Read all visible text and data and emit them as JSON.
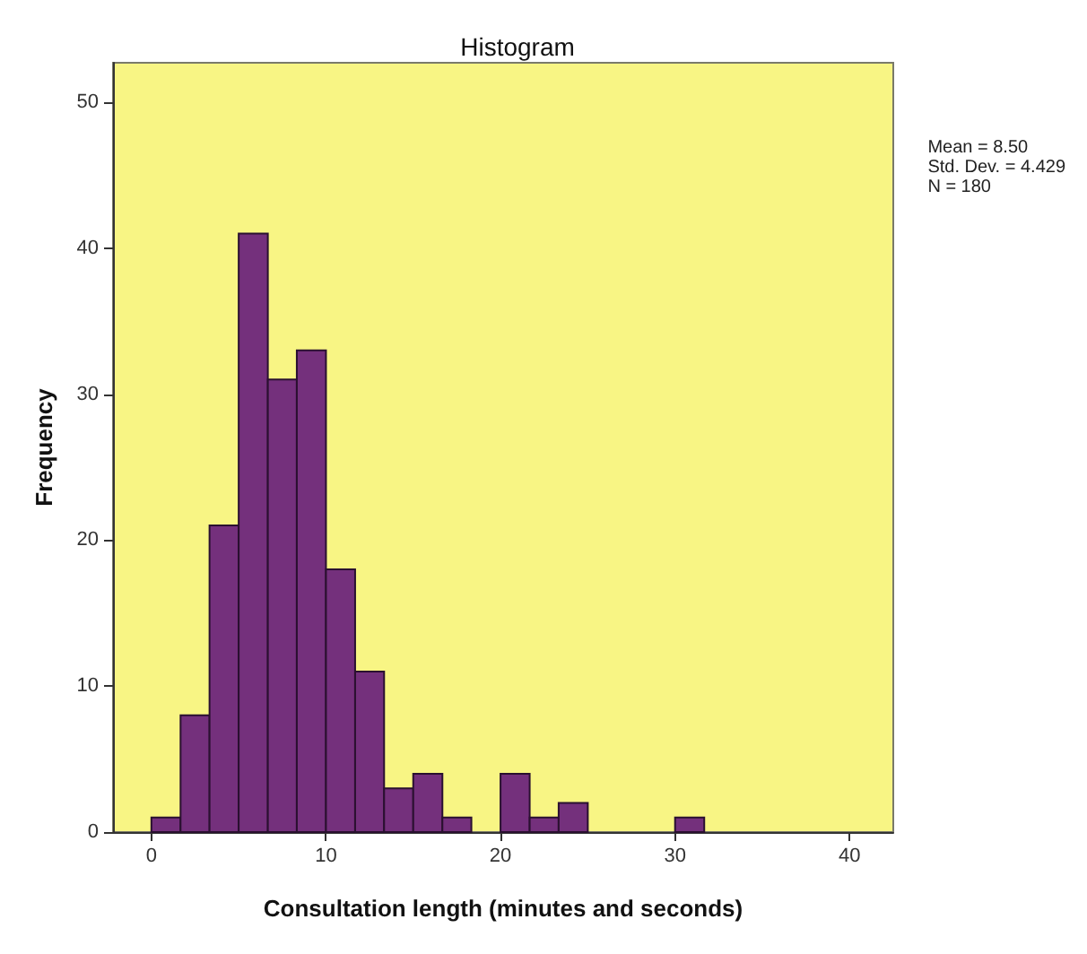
{
  "chart_data": {
    "type": "histogram",
    "title": "Histogram",
    "xlabel": "Consultation length (minutes and seconds)",
    "ylabel": "Frequency",
    "bins": [
      0,
      1.67,
      3.33,
      5,
      6.67,
      8.33,
      10,
      11.67,
      13.33,
      15,
      16.67,
      18.33,
      20,
      21.67,
      23.33,
      25,
      26.67,
      28.33,
      30,
      31.67
    ],
    "values": [
      1,
      8,
      21,
      41,
      31,
      33,
      18,
      11,
      3,
      4,
      1,
      0,
      4,
      1,
      2,
      0,
      0,
      0,
      1
    ],
    "color": "#74307c",
    "xlim": [
      -2.2,
      42.5
    ],
    "xticks": [
      0,
      10,
      20,
      30,
      40
    ],
    "ylim": [
      0,
      52.7
    ],
    "yticks": [
      0,
      10,
      20,
      30,
      40,
      50
    ],
    "grid": false,
    "annotations": [
      "Mean = 8.50\nStd. Dev. = 4.429\nN = 180"
    ]
  }
}
